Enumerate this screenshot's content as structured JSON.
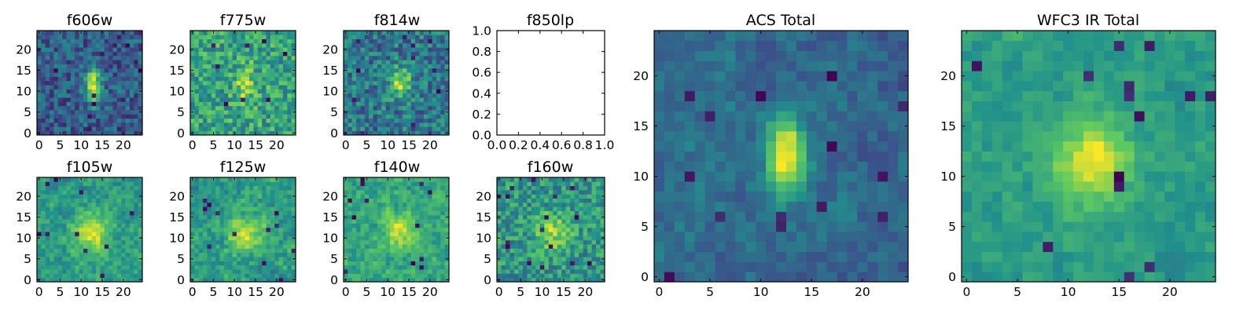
{
  "chart_data": [
    {
      "type": "heatmap",
      "title": "f606w",
      "grid": "25x25 pixels",
      "colormap": "viridis",
      "xlim": [
        0,
        24
      ],
      "ylim": [
        0,
        24
      ],
      "xticks": [
        "0",
        "5",
        "10",
        "15",
        "20"
      ],
      "yticks": [
        "0",
        "5",
        "10",
        "15",
        "20"
      ],
      "source": {
        "cx": 13,
        "cy": 11.5,
        "sx": 1.4,
        "sy": 3.2,
        "amp": 0.85
      },
      "noise": 0.5,
      "bg": 0.42,
      "seed": 11
    },
    {
      "type": "heatmap",
      "title": "f775w",
      "grid": "25x25 pixels",
      "colormap": "viridis",
      "xlim": [
        0,
        24
      ],
      "ylim": [
        0,
        24
      ],
      "xticks": [
        "0",
        "5",
        "10",
        "15",
        "20"
      ],
      "yticks": [
        "0",
        "5",
        "10",
        "15",
        "20"
      ],
      "source": {
        "cx": 12.5,
        "cy": 11.5,
        "sx": 1.4,
        "sy": 3.0,
        "amp": 0.35
      },
      "noise": 0.45,
      "bg": 0.62,
      "seed": 23
    },
    {
      "type": "heatmap",
      "title": "f814w",
      "grid": "25x25 pixels",
      "colormap": "viridis",
      "xlim": [
        0,
        24
      ],
      "ylim": [
        0,
        24
      ],
      "xticks": [
        "0",
        "5",
        "10",
        "15",
        "20"
      ],
      "yticks": [
        "0",
        "5",
        "10",
        "15",
        "20"
      ],
      "source": {
        "cx": 13,
        "cy": 12,
        "sx": 1.8,
        "sy": 2.6,
        "amp": 0.55
      },
      "noise": 0.5,
      "bg": 0.5,
      "seed": 37
    },
    {
      "type": "empty",
      "title": "f850lp",
      "xlim": [
        0.0,
        1.0
      ],
      "ylim": [
        0.0,
        1.0
      ],
      "xticks": [
        "0.0",
        "0.2",
        "0.4",
        "0.6",
        "0.8",
        "1.0"
      ],
      "yticks": [
        "0.0",
        "0.2",
        "0.4",
        "0.6",
        "0.8",
        "1.0"
      ]
    },
    {
      "type": "heatmap",
      "title": "ACS Total",
      "grid": "25x25 pixels",
      "colormap": "viridis",
      "xlim": [
        0,
        24
      ],
      "ylim": [
        0,
        24
      ],
      "xticks": [
        "0",
        "5",
        "10",
        "15",
        "20"
      ],
      "yticks": [
        "0",
        "5",
        "10",
        "15",
        "20"
      ],
      "source": {
        "cx": 12.5,
        "cy": 12,
        "sx": 1.3,
        "sy": 2.8,
        "amp": 0.75
      },
      "noise": 0.28,
      "bg": 0.38,
      "seed": 53
    },
    {
      "type": "heatmap",
      "title": "f105w",
      "grid": "25x25 pixels",
      "colormap": "viridis",
      "xlim": [
        0,
        24
      ],
      "ylim": [
        0,
        24
      ],
      "xticks": [
        "0",
        "5",
        "10",
        "15",
        "20"
      ],
      "yticks": [
        "0",
        "5",
        "10",
        "15",
        "20"
      ],
      "source": {
        "cx": 12.5,
        "cy": 11,
        "sx": 2.8,
        "sy": 3.2,
        "amp": 0.45
      },
      "noise": 0.32,
      "bg": 0.55,
      "seed": 61
    },
    {
      "type": "heatmap",
      "title": "f125w",
      "grid": "25x25 pixels",
      "colormap": "viridis",
      "xlim": [
        0,
        24
      ],
      "ylim": [
        0,
        24
      ],
      "xticks": [
        "0",
        "5",
        "10",
        "15",
        "20"
      ],
      "yticks": [
        "0",
        "5",
        "10",
        "15",
        "20"
      ],
      "source": {
        "cx": 12.5,
        "cy": 11,
        "sx": 2.8,
        "sy": 3.2,
        "amp": 0.4
      },
      "noise": 0.36,
      "bg": 0.55,
      "seed": 73
    },
    {
      "type": "heatmap",
      "title": "f140w",
      "grid": "25x25 pixels",
      "colormap": "viridis",
      "xlim": [
        0,
        24
      ],
      "ylim": [
        0,
        24
      ],
      "xticks": [
        "0",
        "5",
        "10",
        "15",
        "20"
      ],
      "yticks": [
        "0",
        "5",
        "10",
        "15",
        "20"
      ],
      "source": {
        "cx": 13,
        "cy": 12,
        "sx": 2.8,
        "sy": 3.0,
        "amp": 0.35
      },
      "noise": 0.34,
      "bg": 0.6,
      "seed": 89
    },
    {
      "type": "heatmap",
      "title": "f160w",
      "grid": "25x25 pixels",
      "colormap": "viridis",
      "xlim": [
        0,
        24
      ],
      "ylim": [
        0,
        24
      ],
      "xticks": [
        "0",
        "5",
        "10",
        "15",
        "20"
      ],
      "yticks": [
        "0",
        "5",
        "10",
        "15",
        "20"
      ],
      "source": {
        "cx": 12.5,
        "cy": 11.5,
        "sx": 2.8,
        "sy": 3.0,
        "amp": 0.35
      },
      "noise": 0.4,
      "bg": 0.55,
      "seed": 97
    },
    {
      "type": "heatmap",
      "title": "WFC3 IR Total",
      "grid": "25x25 pixels",
      "colormap": "viridis",
      "xlim": [
        0,
        24
      ],
      "ylim": [
        0,
        24
      ],
      "xticks": [
        "0",
        "5",
        "10",
        "15",
        "20"
      ],
      "yticks": [
        "0",
        "5",
        "10",
        "15",
        "20"
      ],
      "source": {
        "cx": 12.5,
        "cy": 11.5,
        "sx": 2.6,
        "sy": 3.0,
        "amp": 0.42
      },
      "noise": 0.2,
      "bg": 0.52,
      "seed": 131
    }
  ]
}
